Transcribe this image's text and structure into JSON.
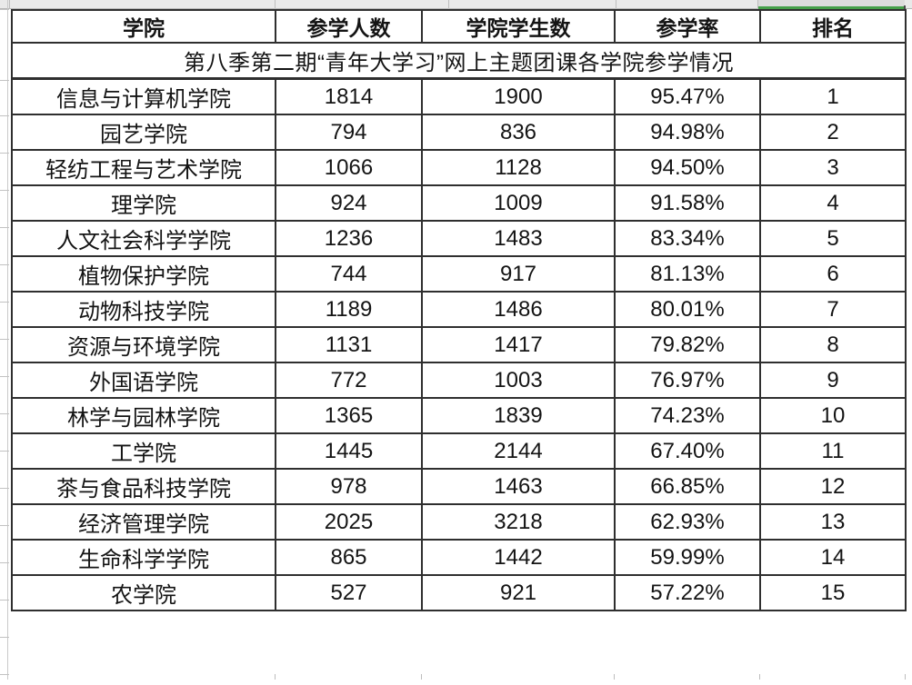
{
  "table": {
    "title": "第八季第二期“青年大学习”网上主题团课各学院参学情况",
    "columns": [
      "学院",
      "参学人数",
      "学院学生数",
      "参学率",
      "排名"
    ],
    "rows": [
      [
        "信息与计算机学院",
        "1814",
        "1900",
        "95.47%",
        "1"
      ],
      [
        "园艺学院",
        "794",
        "836",
        "94.98%",
        "2"
      ],
      [
        "轻纺工程与艺术学院",
        "1066",
        "1128",
        "94.50%",
        "3"
      ],
      [
        "理学院",
        "924",
        "1009",
        "91.58%",
        "4"
      ],
      [
        "人文社会科学学院",
        "1236",
        "1483",
        "83.34%",
        "5"
      ],
      [
        "植物保护学院",
        "744",
        "917",
        "81.13%",
        "6"
      ],
      [
        "动物科技学院",
        "1189",
        "1486",
        "80.01%",
        "7"
      ],
      [
        "资源与环境学院",
        "1131",
        "1417",
        "79.82%",
        "8"
      ],
      [
        "外国语学院",
        "772",
        "1003",
        "76.97%",
        "9"
      ],
      [
        "林学与园林学院",
        "1365",
        "1839",
        "74.23%",
        "10"
      ],
      [
        "工学院",
        "1445",
        "2144",
        "67.40%",
        "11"
      ],
      [
        "茶与食品科技学院",
        "978",
        "1463",
        "66.85%",
        "12"
      ],
      [
        "经济管理学院",
        "2025",
        "3218",
        "62.93%",
        "13"
      ],
      [
        "生命科学学院",
        "865",
        "1442",
        "59.99%",
        "14"
      ],
      [
        "农学院",
        "527",
        "921",
        "57.22%",
        "15"
      ]
    ]
  },
  "colors": {
    "selection_green": "#45a049",
    "table_border": "#2f2f2f",
    "grid_line": "#bdbdbd",
    "strip_background": "#e9e9e9",
    "selected_cell_background": "#dcdcdc",
    "text": "#141414"
  }
}
